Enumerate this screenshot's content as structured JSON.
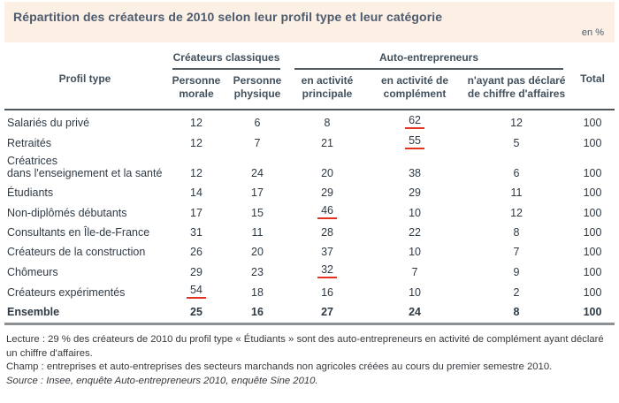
{
  "header": {
    "title": "Répartition des créateurs de 2010 selon leur profil type et leur catégorie",
    "unit": "en %"
  },
  "chart_data": {
    "type": "table",
    "title": "Répartition des créateurs de 2010 selon leur profil type et leur catégorie",
    "unit": "en %",
    "row_header": "Profil type",
    "column_groups": [
      {
        "label": "Créateurs classiques",
        "span": 2
      },
      {
        "label": "Auto-entrepreneurs",
        "span": 3
      }
    ],
    "columns": [
      "Personne morale",
      "Personne physique",
      "en activité principale",
      "en activité de complément",
      "n'ayant pas déclaré de chiffre d'affaires"
    ],
    "total_header": "Total",
    "rows": [
      {
        "label": "Salariés du privé",
        "values": [
          12,
          6,
          8,
          62,
          12,
          100
        ],
        "red_underlined_value_indexes": [
          3
        ],
        "bold": false
      },
      {
        "label": "Retraités",
        "values": [
          12,
          7,
          21,
          55,
          5,
          100
        ],
        "red_underlined_value_indexes": [
          3
        ],
        "bold": false
      },
      {
        "label": "Créatrices\ndans l'enseignement et la santé",
        "values": [
          12,
          24,
          20,
          38,
          6,
          100
        ],
        "red_underlined_value_indexes": [],
        "bold": false
      },
      {
        "label": "Étudiants",
        "values": [
          14,
          17,
          29,
          29,
          11,
          100
        ],
        "red_underlined_value_indexes": [],
        "bold": false
      },
      {
        "label": "Non-diplômés débutants",
        "values": [
          17,
          15,
          46,
          10,
          12,
          100
        ],
        "red_underlined_value_indexes": [
          2
        ],
        "bold": false
      },
      {
        "label": "Consultants en Île-de-France",
        "values": [
          31,
          11,
          28,
          22,
          8,
          100
        ],
        "red_underlined_value_indexes": [],
        "bold": false
      },
      {
        "label": "Créateurs de la construction",
        "values": [
          26,
          20,
          37,
          10,
          7,
          100
        ],
        "red_underlined_value_indexes": [],
        "bold": false
      },
      {
        "label": "Chômeurs",
        "values": [
          29,
          23,
          32,
          7,
          9,
          100
        ],
        "red_underlined_value_indexes": [
          2
        ],
        "bold": false
      },
      {
        "label": "Créateurs expérimentés",
        "values": [
          54,
          18,
          16,
          10,
          2,
          100
        ],
        "red_underlined_value_indexes": [
          0
        ],
        "bold": false
      },
      {
        "label": "Ensemble",
        "values": [
          25,
          16,
          27,
          24,
          8,
          100
        ],
        "red_underlined_value_indexes": [],
        "bold": true
      }
    ]
  },
  "notes": [
    "Lecture : 29 % des créateurs de 2010 du profil type « Étudiants » sont des auto-entrepreneurs en activité de complément ayant déclaré un chiffre d'affaires.",
    "Champ : entreprises et auto-entreprises des secteurs marchands non agricoles créées au cours du premier semestre 2010.",
    "Source : Insee, enquête Auto-entrepreneurs 2010, enquête Sine 2010."
  ],
  "colors": {
    "header_background": "#fcefe3",
    "title_text": "#4d5c70",
    "table_text": "#2f3a45",
    "accent_red_underline": "#e23222",
    "header_rule_dark": "#50575d",
    "bottom_rule_gray": "#8f9295"
  }
}
